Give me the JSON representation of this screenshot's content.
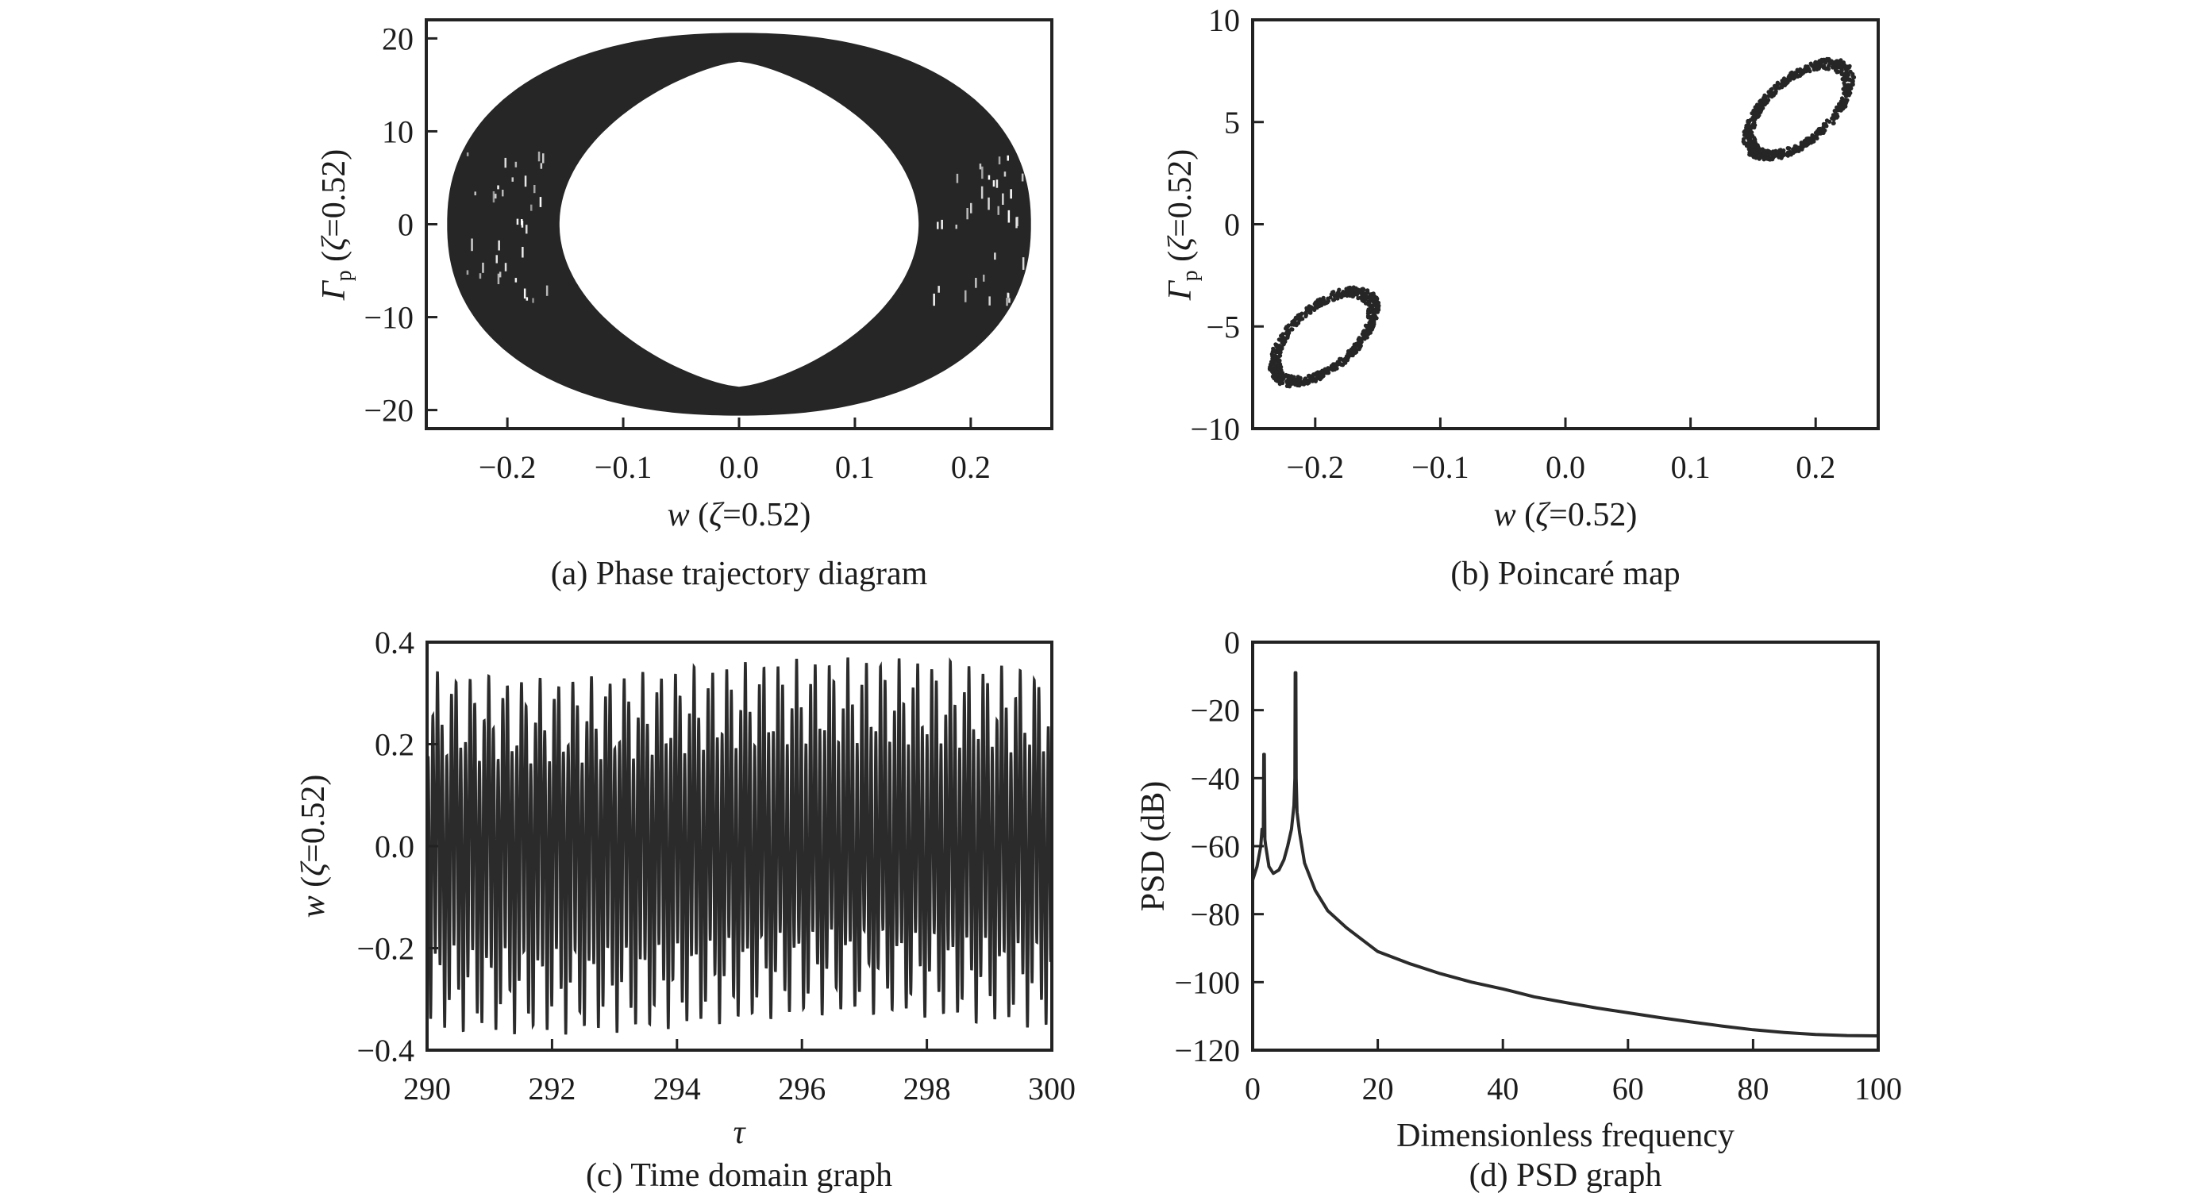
{
  "colors": {
    "ink": "#262626",
    "frame": "#222222",
    "background": "#ffffff"
  },
  "chart_data": [
    {
      "id": "a",
      "type": "scatter",
      "title": "(a) Phase trajectory diagram",
      "xlabel": {
        "var": "w",
        "open": " (",
        "sym": "ζ",
        "rest": "=0.52)"
      },
      "ylabel": {
        "var": "Γ",
        "sub": "p",
        "open": " (",
        "sym": "ζ",
        "rest": "=0.52)"
      },
      "xlim": [
        -0.27,
        0.27
      ],
      "ylim": [
        -22,
        22
      ],
      "grid": false,
      "xticks": {
        "values": [
          -0.2,
          -0.1,
          0.0,
          0.1,
          0.2
        ],
        "labels": [
          "−0.2",
          "−0.1",
          "0.0",
          "0.1",
          "0.2"
        ]
      },
      "yticks": {
        "values": [
          -20,
          -10,
          0,
          10,
          20
        ],
        "labels": [
          "−20",
          "−10",
          "0",
          "10",
          "20"
        ]
      },
      "trajectory_band": {
        "outer": {
          "w_extent": 0.252,
          "gamma_extent": 20.6
        },
        "inner": {
          "w_extent": 0.155,
          "gamma_extent": 17.5
        }
      }
    },
    {
      "id": "b",
      "type": "scatter",
      "title": "(b) Poincaré map",
      "xlabel": {
        "var": "w",
        "open": " (",
        "sym": "ζ",
        "rest": "=0.52)"
      },
      "ylabel": {
        "var": "Γ",
        "sub": "p",
        "open": " (",
        "sym": "ζ",
        "rest": "=0.52)"
      },
      "xlim": [
        -0.25,
        0.25
      ],
      "ylim": [
        -10,
        10
      ],
      "grid": false,
      "xticks": {
        "values": [
          -0.2,
          -0.1,
          0.0,
          0.1,
          0.2
        ],
        "labels": [
          "−0.2",
          "−0.1",
          "0.0",
          "0.1",
          "0.2"
        ]
      },
      "yticks": {
        "values": [
          -10,
          -5,
          0,
          5,
          10
        ],
        "labels": [
          "−10",
          "−5",
          "0",
          "5",
          "10"
        ]
      },
      "clusters": [
        {
          "center": [
            0.188,
            5.6
          ],
          "w_range": [
            0.142,
            0.231
          ],
          "gamma_range": [
            3.1,
            8.1
          ],
          "points": 650
        },
        {
          "center": [
            -0.193,
            -5.5
          ],
          "w_range": [
            -0.237,
            -0.149
          ],
          "gamma_range": [
            -7.95,
            -3.06
          ],
          "points": 650
        }
      ]
    },
    {
      "id": "c",
      "type": "line",
      "title": "(c) Time domain graph",
      "xlabel": {
        "var": "τ"
      },
      "ylabel": {
        "var": "w",
        "open": " (",
        "sym": "ζ",
        "rest": "=0.52)"
      },
      "xlim": [
        290,
        300
      ],
      "ylim": [
        -0.4,
        0.4
      ],
      "grid": false,
      "xticks": {
        "values": [
          290,
          292,
          294,
          296,
          298,
          300
        ],
        "labels": [
          "290",
          "292",
          "294",
          "296",
          "298",
          "300"
        ]
      },
      "yticks": {
        "values": [
          -0.4,
          -0.2,
          0.0,
          0.2,
          0.4
        ],
        "labels": [
          "−0.4",
          "−0.2",
          "0.0",
          "0.2",
          "0.4"
        ]
      },
      "signal": {
        "tau_range": [
          290,
          300
        ],
        "w_max": 0.37,
        "w_min": -0.37,
        "components": [
          {
            "amplitude": 0.265,
            "cycles_per_unit": 13.4,
            "phase": 0.0
          },
          {
            "amplitude": 0.085,
            "cycles_per_unit": 3.65,
            "phase": 1.0
          },
          {
            "amplitude": 0.02,
            "cycles_per_unit": 26.9,
            "phase": 0.4
          }
        ]
      }
    },
    {
      "id": "d",
      "type": "line",
      "title": "(d) PSD graph",
      "xlabel": {
        "var": "Dimensionless frequency"
      },
      "ylabel": {
        "var": "PSD (dB)"
      },
      "xlim": [
        0,
        100
      ],
      "ylim": [
        -120,
        0
      ],
      "grid": false,
      "xticks": {
        "values": [
          0,
          20,
          40,
          60,
          80,
          100
        ],
        "labels": [
          "0",
          "20",
          "40",
          "60",
          "80",
          "100"
        ]
      },
      "yticks": {
        "values": [
          -120,
          -100,
          -80,
          -60,
          -40,
          -20,
          0
        ],
        "labels": [
          "−120",
          "−100",
          "−80",
          "−60",
          "−40",
          "−20",
          "0"
        ]
      },
      "series": [
        {
          "name": "PSD",
          "x": [
            0,
            0.7,
            1.3,
            1.5,
            1.7,
            1.78,
            1.86,
            1.95,
            2.1,
            2.6,
            3.3,
            4.2,
            5.0,
            5.6,
            6.2,
            6.6,
            6.75,
            6.8,
            6.9,
            6.95,
            7.1,
            7.5,
            8.3,
            10,
            12,
            15,
            20,
            25,
            30,
            35,
            40,
            45,
            50,
            55,
            60,
            65,
            70,
            75,
            80,
            85,
            90,
            95,
            100
          ],
          "y": [
            -70,
            -66,
            -60,
            -55,
            -57,
            -33,
            -33,
            -58,
            -60,
            -66,
            -68,
            -67,
            -64,
            -60,
            -55,
            -48,
            -40,
            -9,
            -9,
            -40,
            -50,
            -56,
            -65,
            -73,
            -79,
            -84,
            -91,
            -94.5,
            -97.5,
            -100,
            -102,
            -104.3,
            -106,
            -107.6,
            -109,
            -110.4,
            -111.7,
            -112.9,
            -114,
            -114.8,
            -115.4,
            -115.7,
            -115.8
          ]
        }
      ],
      "peaks": [
        {
          "frequency": 1.8,
          "psd_db": -33
        },
        {
          "frequency": 6.85,
          "psd_db": -9
        }
      ]
    }
  ]
}
